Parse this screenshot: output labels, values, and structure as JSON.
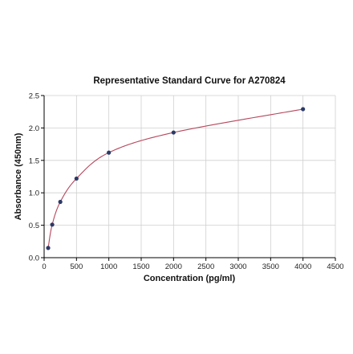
{
  "chart_data": {
    "type": "scatter",
    "title": "Representative Standard Curve for A270824",
    "xlabel": "Concentration (pg/ml)",
    "ylabel": "Absorbance (450nm)",
    "xlim": [
      0,
      4500
    ],
    "ylim": [
      0,
      2.5
    ],
    "xticks": [
      0,
      500,
      1000,
      1500,
      2000,
      2500,
      3000,
      3500,
      4000,
      4500
    ],
    "yticks": [
      0.0,
      0.5,
      1.0,
      1.5,
      2.0,
      2.5
    ],
    "ytick_labels": [
      "0.0",
      "0.5",
      "1.0",
      "1.5",
      "2.0",
      "2.5"
    ],
    "grid": true,
    "series": [
      {
        "x": [
          62.5,
          125,
          250,
          500,
          1000,
          2000,
          4000
        ],
        "y": [
          0.15,
          0.51,
          0.86,
          1.22,
          1.62,
          1.93,
          2.29
        ]
      }
    ],
    "fit_curve": {
      "type": "line",
      "x_range": [
        62.5,
        4000
      ]
    },
    "colors": {
      "points": "#2b3a67",
      "curve": "#b5485c",
      "grid": "#cfcfcf",
      "axis": "#000000"
    }
  }
}
